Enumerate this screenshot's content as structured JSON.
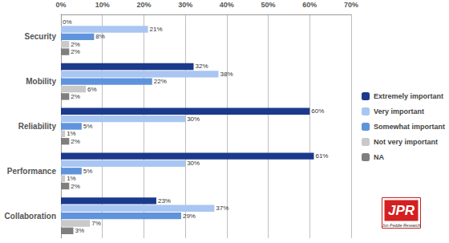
{
  "chart_data": {
    "type": "bar",
    "orientation": "horizontal",
    "categories": [
      "Security",
      "Mobility",
      "Reliability",
      "Performance",
      "Collaboration"
    ],
    "series": [
      {
        "name": "Extremely important",
        "color": "#1c3a8c",
        "values": [
          0,
          32,
          60,
          61,
          23
        ],
        "value_labels": [
          "0%",
          "32%",
          "60%",
          "61%",
          "23%"
        ]
      },
      {
        "name": "Very important",
        "color": "#a9c6f2",
        "values": [
          21,
          38,
          30,
          30,
          37
        ],
        "value_labels": [
          "21%",
          "38%",
          "30%",
          "30%",
          "37%"
        ]
      },
      {
        "name": "Somewhat important",
        "color": "#5f93dc",
        "values": [
          8,
          22,
          5,
          5,
          29
        ],
        "value_labels": [
          "8%",
          "22%",
          "5%",
          "5%",
          "29%"
        ]
      },
      {
        "name": "Not very important",
        "color": "#c9c9c9",
        "values": [
          2,
          6,
          1,
          1,
          7
        ],
        "value_labels": [
          "2%",
          "6%",
          "1%",
          "1%",
          "7%"
        ]
      },
      {
        "name": "NA",
        "color": "#7f7f7f",
        "values": [
          2,
          2,
          2,
          2,
          3
        ],
        "value_labels": [
          "2%",
          "2%",
          "2%",
          "2%",
          "3%"
        ]
      }
    ],
    "xlim": [
      0,
      70
    ],
    "xticks": [
      {
        "value": 0,
        "label": "0%"
      },
      {
        "value": 10,
        "label": "10%"
      },
      {
        "value": 20,
        "label": "20%"
      },
      {
        "value": 30,
        "label": "30%"
      },
      {
        "value": 40,
        "label": "40%"
      },
      {
        "value": 50,
        "label": "50%"
      },
      {
        "value": 60,
        "label": "60%"
      },
      {
        "value": 70,
        "label": "70%"
      }
    ],
    "grid": true,
    "legend": "right",
    "data_labels": true,
    "annotations": [
      "JPR",
      "Jon Peddie Research"
    ]
  }
}
